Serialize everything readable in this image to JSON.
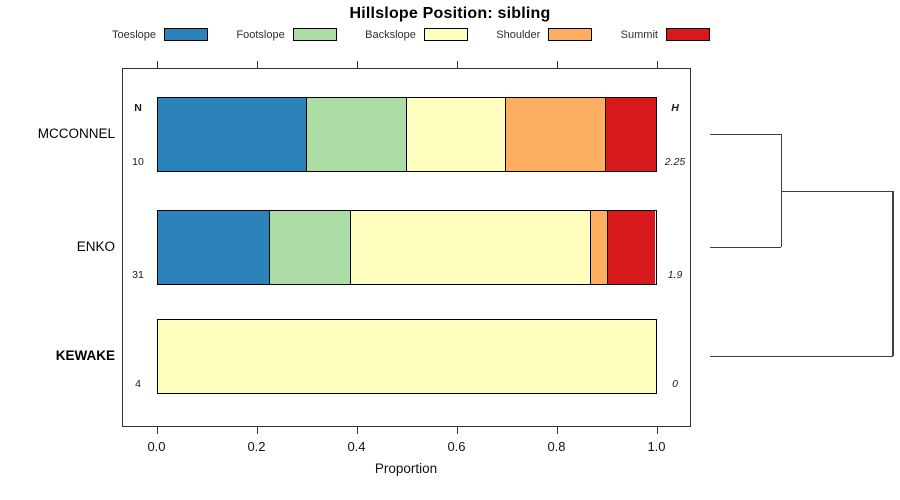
{
  "title": "Hillslope Position: sibling",
  "legend": {
    "entries": [
      {
        "label": "Toeslope",
        "color": "#2B83BA"
      },
      {
        "label": "Footslope",
        "color": "#ABDDA4"
      },
      {
        "label": "Backslope",
        "color": "#FFFFBF"
      },
      {
        "label": "Shoulder",
        "color": "#FDAE61"
      },
      {
        "label": "Summit",
        "color": "#D7191C"
      }
    ]
  },
  "axis": {
    "label": "Proportion",
    "ticks": [
      "0.0",
      "0.2",
      "0.4",
      "0.6",
      "0.8",
      "1.0"
    ],
    "range": [
      0,
      1
    ]
  },
  "annotations": {
    "n_header": "N",
    "h_header": "H"
  },
  "chart_data": {
    "type": "bar",
    "orientation": "horizontal-stacked",
    "title": "Hillslope Position: sibling",
    "xlabel": "Proportion",
    "xlim": [
      0,
      1
    ],
    "grid": false,
    "legend_position": "top",
    "categories": [
      "Toeslope",
      "Footslope",
      "Backslope",
      "Shoulder",
      "Summit"
    ],
    "colors": [
      "#2B83BA",
      "#ABDDA4",
      "#FFFFBF",
      "#FDAE61",
      "#D7191C"
    ],
    "rows": [
      {
        "name": "MCCONNEL",
        "n": "10",
        "h": "2.25",
        "bold": false,
        "proportions": [
          0.3,
          0.2,
          0.2,
          0.2,
          0.1
        ]
      },
      {
        "name": "ENKO",
        "n": "31",
        "h": "1.9",
        "bold": false,
        "proportions": [
          0.2258,
          0.1613,
          0.4839,
          0.0323,
          0.0968
        ]
      },
      {
        "name": "KEWAKE",
        "n": "4",
        "h": "0",
        "bold": true,
        "proportions": [
          0,
          0,
          1,
          0,
          0
        ]
      }
    ],
    "dendrogram": {
      "description": "Right-side cluster tree: MCCONNEL and ENKO merge first, the pair then merges with KEWAKE at a larger distance",
      "links": [
        {
          "members": [
            "MCCONNEL",
            "ENKO"
          ],
          "relative_height": 0.39
        },
        {
          "members": [
            "MCCONNEL+ENKO",
            "KEWAKE"
          ],
          "relative_height": 1.0
        }
      ]
    }
  }
}
